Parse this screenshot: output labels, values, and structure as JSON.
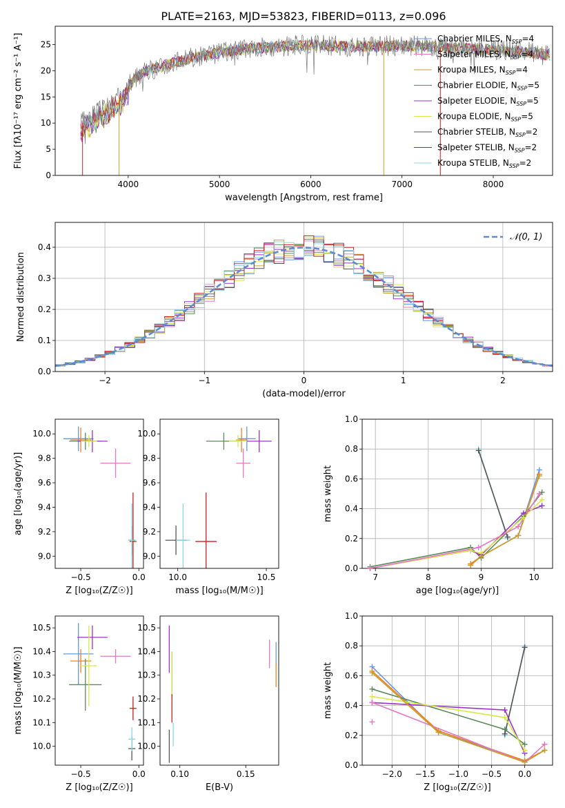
{
  "figure_title": "PLATE=2163, MJD=53823, FIBERID=0113, z=0.096",
  "model_colors": {
    "Chabrier MILES": "#6495ed",
    "Salpeter MILES": "#e377c2",
    "Kroupa MILES": "#c8a02c",
    "Chabrier ELODIE": "#5a8a5a",
    "Salpeter ELODIE": "#9b30c8",
    "Kroupa ELODIE": "#d8e84a",
    "Chabrier STELIB": "#555555",
    "Salpeter STELIB": "#c81e1e",
    "Kroupa STELIB": "#8fd3e0",
    "accent_orange": "#f07f20"
  },
  "chart_data": [
    {
      "id": "spectrum",
      "type": "line",
      "title": "PLATE=2163, MJD=53823, FIBERID=0113, z=0.096",
      "xlabel": "wavelength [Angstrom, rest frame]",
      "ylabel": "Flux [fλ10⁻¹⁷ erg cm⁻² s⁻¹ A⁻¹]",
      "xlim": [
        3200,
        8650
      ],
      "ylim": [
        0,
        28.5
      ],
      "xticks": [
        4000,
        5000,
        6000,
        7000,
        8000
      ],
      "yticks": [
        0,
        5,
        10,
        15,
        20,
        25
      ],
      "grid": false,
      "legend_position": "top-right",
      "legend": [
        {
          "base": "Chabrier MILES, N",
          "sub": "SSP",
          "tail": "=4",
          "color": "#6495ed"
        },
        {
          "base": "Salpeter MILES, N",
          "sub": "SSP",
          "tail": "=4",
          "color": "#e377c2"
        },
        {
          "base": "Kroupa MILES, N",
          "sub": "SSP",
          "tail": "=4",
          "color": "#c8a02c"
        },
        {
          "base": "Chabrier ELODIE, N",
          "sub": "SSP",
          "tail": "=5",
          "color": "#5a8a5a"
        },
        {
          "base": "Salpeter ELODIE, N",
          "sub": "SSP",
          "tail": "=5",
          "color": "#9b30c8"
        },
        {
          "base": "Kroupa ELODIE, N",
          "sub": "SSP",
          "tail": "=5",
          "color": "#d8e84a"
        },
        {
          "base": "Chabrier STELIB, N",
          "sub": "SSP",
          "tail": "=2",
          "color": "#555555"
        },
        {
          "base": "Salpeter STELIB, N",
          "sub": "SSP",
          "tail": "=2",
          "color": "#c81e1e"
        },
        {
          "base": "Kroupa STELIB, N",
          "sub": "SSP",
          "tail": "=2",
          "color": "#8fd3e0"
        }
      ],
      "series_trend": {
        "x": [
          3480,
          3600,
          3700,
          3800,
          3900,
          4000,
          4100,
          4200,
          4300,
          4400,
          4500,
          4600,
          4700,
          4800,
          4900,
          5000,
          5200,
          5400,
          5600,
          5800,
          6000,
          6200,
          6400,
          6600,
          6800,
          7000,
          7200,
          7400,
          7600,
          7800,
          8000,
          8200,
          8400,
          8600
        ],
        "y": [
          10,
          11.5,
          12.5,
          13.5,
          15,
          17,
          19,
          20,
          20.5,
          21,
          21.5,
          22,
          22.5,
          22.8,
          23,
          23.5,
          24,
          24.3,
          24.5,
          24.8,
          25,
          24.8,
          24.6,
          24.6,
          24.7,
          24.8,
          24.8,
          24.5,
          24.3,
          24.2,
          24,
          23.8,
          23.5,
          23
        ]
      }
    },
    {
      "id": "residuals",
      "type": "step",
      "xlabel": "(data-model)/error",
      "ylabel": "Normed distribution",
      "xlim": [
        -2.5,
        2.5
      ],
      "ylim": [
        0,
        0.48
      ],
      "xticks": [
        -2,
        -1,
        0,
        1,
        2
      ],
      "yticks": [
        0.0,
        0.1,
        0.2,
        0.3,
        0.4
      ],
      "grid": true,
      "legend_position": "top-right",
      "legend_label": "𝒩(0, 1)",
      "gauss_color": "#5b8ad6"
    },
    {
      "id": "age_vs_Z",
      "type": "errorbar",
      "xlabel": "Z [log₁₀(Z/Z☉)]",
      "ylabel": "age [log₁₀(age/yr)]",
      "xlim": [
        -0.72,
        0.04
      ],
      "ylim": [
        8.9,
        10.12
      ],
      "xticks": [
        -0.5,
        0.0
      ],
      "yticks": [
        9.0,
        9.2,
        9.4,
        9.6,
        9.8,
        10.0
      ],
      "points": [
        {
          "x": -0.52,
          "y": 9.96,
          "xerr": 0.13,
          "yerr": 0.1,
          "color": "#6495ed"
        },
        {
          "x": -0.2,
          "y": 9.76,
          "xerr": 0.13,
          "yerr": 0.12,
          "color": "#e377c2"
        },
        {
          "x": -0.5,
          "y": 9.95,
          "xerr": 0.09,
          "yerr": 0.1,
          "color": "#f07f20"
        },
        {
          "x": -0.46,
          "y": 9.94,
          "xerr": 0.14,
          "yerr": 0.07,
          "color": "#5a8a5a"
        },
        {
          "x": -0.4,
          "y": 9.94,
          "xerr": 0.13,
          "yerr": 0.09,
          "color": "#9b30c8"
        },
        {
          "x": -0.43,
          "y": 9.94,
          "xerr": 0.07,
          "yerr": 0.05,
          "color": "#d8e84a"
        },
        {
          "x": -0.06,
          "y": 9.13,
          "xerr": 0.03,
          "yerr": 0.12,
          "color": "#555555"
        },
        {
          "x": -0.05,
          "y": 9.12,
          "xerr": 0.03,
          "yerr": 0.4,
          "color": "#c81e1e"
        },
        {
          "x": -0.06,
          "y": 9.13,
          "xerr": 0.03,
          "yerr": 0.3,
          "color": "#8fd3e0"
        }
      ]
    },
    {
      "id": "age_vs_mass",
      "type": "errorbar",
      "xlabel": "mass [log₁₀(M/M☉)]",
      "ylabel": "",
      "xlim": [
        9.9,
        10.57
      ],
      "ylim": [
        8.9,
        10.12
      ],
      "xticks": [
        10.0,
        10.5
      ],
      "yticks": [
        9.0,
        9.2,
        9.4,
        9.6,
        9.8,
        10.0
      ],
      "points": [
        {
          "x": 10.39,
          "y": 9.96,
          "xerr": 0.05,
          "yerr": 0.1,
          "color": "#6495ed"
        },
        {
          "x": 10.37,
          "y": 9.76,
          "xerr": 0.04,
          "yerr": 0.12,
          "color": "#e377c2"
        },
        {
          "x": 10.36,
          "y": 9.95,
          "xerr": 0.03,
          "yerr": 0.1,
          "color": "#f07f20"
        },
        {
          "x": 10.26,
          "y": 9.94,
          "xerr": 0.1,
          "yerr": 0.07,
          "color": "#5a8a5a"
        },
        {
          "x": 10.46,
          "y": 9.94,
          "xerr": 0.07,
          "yerr": 0.09,
          "color": "#9b30c8"
        },
        {
          "x": 10.34,
          "y": 9.94,
          "xerr": 0.05,
          "yerr": 0.05,
          "color": "#d8e84a"
        },
        {
          "x": 9.99,
          "y": 9.13,
          "xerr": 0.06,
          "yerr": 0.12,
          "color": "#555555"
        },
        {
          "x": 10.16,
          "y": 9.12,
          "xerr": 0.06,
          "yerr": 0.4,
          "color": "#c81e1e"
        },
        {
          "x": 10.03,
          "y": 9.13,
          "xerr": 0.04,
          "yerr": 0.3,
          "color": "#8fd3e0"
        }
      ]
    },
    {
      "id": "weight_vs_age",
      "type": "line",
      "xlabel": "age [log₁₀(age/yr)]",
      "ylabel": "mass weight",
      "xlim": [
        6.75,
        10.35
      ],
      "ylim": [
        0,
        1.0
      ],
      "xticks": [
        7,
        8,
        9,
        10
      ],
      "yticks": [
        0.0,
        0.2,
        0.4,
        0.6,
        0.8,
        1.0
      ],
      "grid": true,
      "series": [
        {
          "color": "#8fd3e0",
          "x": [
            8.95,
            9.5
          ],
          "y": [
            0.8,
            0.2
          ]
        },
        {
          "color": "#555555",
          "x": [
            8.95,
            9.5
          ],
          "y": [
            0.79,
            0.21
          ]
        },
        {
          "color": "#6495ed",
          "x": [
            8.8,
            9.0,
            9.7,
            10.1
          ],
          "y": [
            0.03,
            0.08,
            0.22,
            0.66
          ]
        },
        {
          "color": "#f07f20",
          "x": [
            8.8,
            9.0,
            9.7,
            10.1
          ],
          "y": [
            0.03,
            0.08,
            0.22,
            0.63
          ]
        },
        {
          "color": "#5a8a5a",
          "x": [
            6.9,
            8.8,
            9.0,
            9.8,
            10.15
          ],
          "y": [
            0.01,
            0.14,
            0.07,
            0.35,
            0.51
          ]
        },
        {
          "color": "#9b30c8",
          "x": [
            6.9,
            8.8,
            9.0,
            9.8,
            10.15
          ],
          "y": [
            0.0,
            0.12,
            0.09,
            0.37,
            0.42
          ]
        },
        {
          "color": "#d8e84a",
          "x": [
            6.9,
            8.8,
            9.0,
            9.8,
            10.15
          ],
          "y": [
            0.0,
            0.12,
            0.1,
            0.34,
            0.46
          ]
        },
        {
          "color": "#e377c2",
          "x": [
            6.9,
            8.95,
            9.7,
            10.1
          ],
          "y": [
            0.0,
            0.14,
            0.28,
            0.5
          ]
        },
        {
          "color": "#c8a02c",
          "x": [
            8.8,
            9.0,
            9.7,
            10.1
          ],
          "y": [
            0.02,
            0.08,
            0.22,
            0.62
          ]
        }
      ]
    },
    {
      "id": "mass_vs_Z",
      "type": "errorbar",
      "xlabel": "Z [log₁₀(Z/Z☉)]",
      "ylabel": "mass [log₁₀(M/M☉)]",
      "xlim": [
        -0.72,
        0.04
      ],
      "ylim": [
        9.92,
        10.55
      ],
      "xticks": [
        -0.5,
        0.0
      ],
      "yticks": [
        10.0,
        10.1,
        10.2,
        10.3,
        10.4,
        10.5
      ],
      "points": [
        {
          "x": -0.52,
          "y": 10.39,
          "xerr": 0.13,
          "yerr": 0.13,
          "color": "#6495ed"
        },
        {
          "x": -0.2,
          "y": 10.38,
          "xerr": 0.13,
          "yerr": 0.03,
          "color": "#e377c2"
        },
        {
          "x": -0.5,
          "y": 10.36,
          "xerr": 0.09,
          "yerr": 0.05,
          "color": "#f07f20"
        },
        {
          "x": -0.46,
          "y": 10.26,
          "xerr": 0.14,
          "yerr": 0.11,
          "color": "#5a8a5a"
        },
        {
          "x": -0.4,
          "y": 10.46,
          "xerr": 0.13,
          "yerr": 0.05,
          "color": "#9b30c8"
        },
        {
          "x": -0.43,
          "y": 10.34,
          "xerr": 0.07,
          "yerr": 0.17,
          "color": "#d8e84a"
        },
        {
          "x": -0.06,
          "y": 9.99,
          "xerr": 0.03,
          "yerr": 0.05,
          "color": "#555555"
        },
        {
          "x": -0.05,
          "y": 10.16,
          "xerr": 0.03,
          "yerr": 0.05,
          "color": "#c81e1e"
        },
        {
          "x": -0.06,
          "y": 10.03,
          "xerr": 0.03,
          "yerr": 0.05,
          "color": "#8fd3e0"
        }
      ]
    },
    {
      "id": "mass_vs_ebv",
      "type": "errorbar",
      "xlabel": "E(B-V)",
      "ylabel": "",
      "xlim": [
        0.085,
        0.175
      ],
      "ylim": [
        9.92,
        10.55
      ],
      "xticks": [
        0.1,
        0.15
      ],
      "yticks": [
        10.0,
        10.1,
        10.2,
        10.3,
        10.4,
        10.5
      ],
      "points": [
        {
          "x": 0.173,
          "y": 10.39,
          "xerr": 0.0,
          "yerr": 0.05,
          "color": "#6495ed"
        },
        {
          "x": 0.168,
          "y": 10.39,
          "xerr": 0.0,
          "yerr": 0.06,
          "color": "#e377c2"
        },
        {
          "x": 0.173,
          "y": 10.3,
          "xerr": 0.0,
          "yerr": 0.05,
          "color": "#f07f20"
        },
        {
          "x": 0.094,
          "y": 10.3,
          "xerr": 0.0,
          "yerr": 0.1,
          "color": "#5a8a5a"
        },
        {
          "x": 0.092,
          "y": 10.41,
          "xerr": 0.0,
          "yerr": 0.1,
          "color": "#9b30c8"
        },
        {
          "x": 0.094,
          "y": 10.3,
          "xerr": 0.0,
          "yerr": 0.1,
          "color": "#d8e84a"
        },
        {
          "x": 0.092,
          "y": 10.0,
          "xerr": 0.0,
          "yerr": 0.07,
          "color": "#555555"
        },
        {
          "x": 0.094,
          "y": 10.16,
          "xerr": 0.0,
          "yerr": 0.06,
          "color": "#c81e1e"
        },
        {
          "x": 0.095,
          "y": 10.05,
          "xerr": 0.0,
          "yerr": 0.05,
          "color": "#8fd3e0"
        }
      ]
    },
    {
      "id": "weight_vs_Z",
      "type": "line",
      "xlabel": "Z [log₁₀(Z/Z☉)]",
      "ylabel": "mass weight",
      "xlim": [
        -2.45,
        0.42
      ],
      "ylim": [
        0,
        1.0
      ],
      "xticks": [
        -2.0,
        -1.5,
        -1.0,
        -0.5,
        0.0
      ],
      "yticks": [
        0.0,
        0.2,
        0.4,
        0.6,
        0.8,
        1.0
      ],
      "grid": true,
      "series": [
        {
          "color": "#8fd3e0",
          "x": [
            -0.3,
            0.0
          ],
          "y": [
            0.2,
            0.8
          ]
        },
        {
          "color": "#555555",
          "x": [
            -0.3,
            0.0
          ],
          "y": [
            0.21,
            0.79
          ]
        },
        {
          "color": "#6495ed",
          "x": [
            -2.3,
            -1.3,
            0.0,
            0.3
          ],
          "y": [
            0.66,
            0.22,
            0.03,
            0.1
          ]
        },
        {
          "color": "#f07f20",
          "x": [
            -2.3,
            -1.3,
            0.0,
            0.3
          ],
          "y": [
            0.63,
            0.23,
            0.03,
            0.1
          ]
        },
        {
          "color": "#5a8a5a",
          "x": [
            -2.3,
            -0.3,
            0.0
          ],
          "y": [
            0.51,
            0.24,
            0.14
          ]
        },
        {
          "color": "#9b30c8",
          "x": [
            -2.3,
            -0.3,
            0.0
          ],
          "y": [
            0.42,
            0.37,
            0.08
          ]
        },
        {
          "color": "#d8e84a",
          "x": [
            -2.3,
            -0.3,
            0.0
          ],
          "y": [
            0.46,
            0.32,
            0.1
          ]
        },
        {
          "color": "#e377c2",
          "x": [
            -2.3,
            0.0,
            0.3
          ],
          "y": [
            0.42,
            0.02,
            0.14
          ]
        },
        {
          "color": "#c8a02c",
          "x": [
            -2.3,
            -1.3,
            0.0,
            0.3
          ],
          "y": [
            0.62,
            0.22,
            0.02,
            0.1
          ]
        }
      ],
      "extra_markers": [
        {
          "x": -2.3,
          "y": 0.29,
          "color": "#e377c2"
        }
      ]
    }
  ]
}
